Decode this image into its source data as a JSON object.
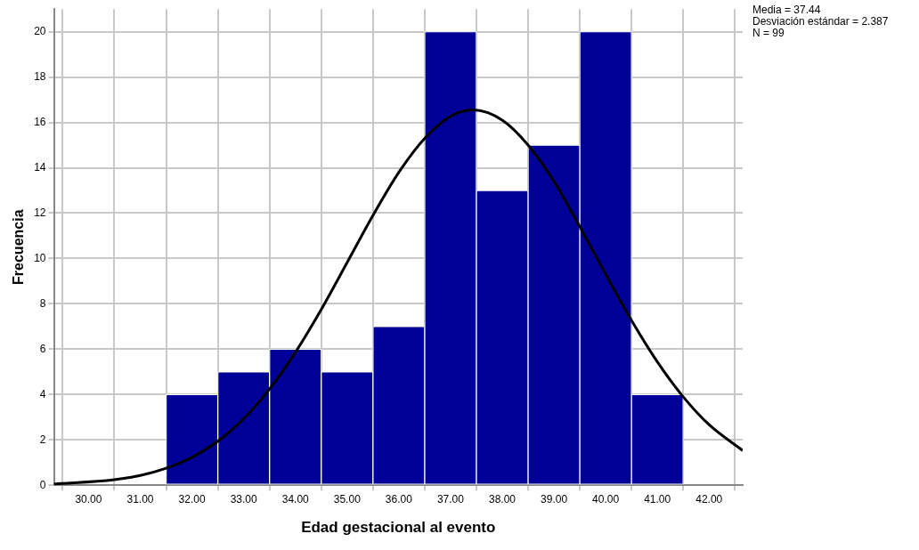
{
  "chart_data": {
    "type": "histogram",
    "xlabel": "Edad gestacional al evento",
    "ylabel": "Frecuencia",
    "bins": [
      31.5,
      32.5,
      33.5,
      34.5,
      35.5,
      36.5,
      37.5,
      38.5,
      39.5,
      40.5,
      41.5
    ],
    "values": [
      4,
      5,
      6,
      5,
      7,
      20,
      13,
      15,
      20,
      4
    ],
    "color": "#000099",
    "series": [
      {
        "type": "line",
        "color": "#000000",
        "x": [
          29.33,
          30.5,
          31,
          31.5,
          32,
          32.5,
          33,
          33.5,
          34,
          34.5,
          35,
          35.5,
          36,
          36.5,
          37,
          37.44,
          38,
          38.5,
          39,
          39.5,
          40,
          40.5,
          41,
          41.5,
          42,
          42.65
        ],
        "values": [
          0.05,
          0.24,
          0.43,
          0.75,
          1.23,
          1.94,
          2.93,
          4.24,
          5.86,
          7.75,
          9.82,
          11.9,
          13.8,
          15.3,
          16.27,
          16.55,
          16.1,
          15.0,
          13.4,
          11.4,
          9.31,
          7.27,
          5.44,
          3.9,
          2.67,
          1.53
        ]
      }
    ],
    "marker": "none",
    "xlim": [
      29.33,
      42.65
    ],
    "xticks": [
      {
        "value": 30,
        "label": "30.00"
      },
      {
        "value": 31,
        "label": "31.00"
      },
      {
        "value": 32,
        "label": "32.00"
      },
      {
        "value": 33,
        "label": "33.00"
      },
      {
        "value": 34,
        "label": "34.00"
      },
      {
        "value": 35,
        "label": "35.00"
      },
      {
        "value": 36,
        "label": "36.00"
      },
      {
        "value": 37,
        "label": "37.00"
      },
      {
        "value": 38,
        "label": "38.00"
      },
      {
        "value": 39,
        "label": "39.00"
      },
      {
        "value": 40,
        "label": "40.00"
      },
      {
        "value": 41,
        "label": "41.00"
      },
      {
        "value": 42,
        "label": "42.00"
      }
    ],
    "ylim": [
      0,
      21
    ],
    "yticks": [
      0,
      2,
      4,
      6,
      8,
      10,
      12,
      14,
      16,
      18,
      20
    ],
    "grid": true,
    "legend": false,
    "annotations": [
      "Media = 37.44",
      "Desviación estándar = 2.387",
      "N = 99"
    ]
  }
}
